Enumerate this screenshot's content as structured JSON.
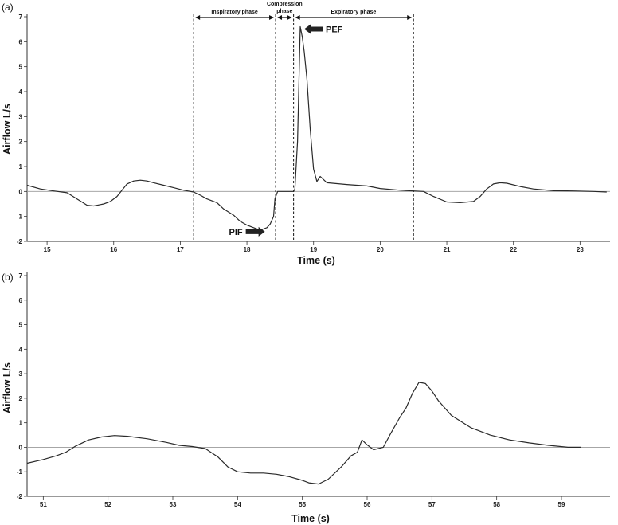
{
  "chart_data": [
    {
      "type": "line",
      "panel_label": "(a)",
      "xlabel": "Time (s)",
      "ylabel": "Airflow L/s",
      "xlim": [
        14.7,
        23.45
      ],
      "ylim": [
        -2,
        7
      ],
      "xticks": [
        15,
        16,
        17,
        18,
        19,
        20,
        21,
        22,
        23
      ],
      "yticks": [
        -2,
        -1,
        0,
        1,
        2,
        3,
        4,
        5,
        6,
        7
      ],
      "grid": false,
      "reference_line_y": 0,
      "series": [
        {
          "x": [
            14.7,
            14.9,
            15.1,
            15.3,
            15.45,
            15.6,
            15.7,
            15.85,
            15.95,
            16.05,
            16.2,
            16.3,
            16.4,
            16.5,
            16.6,
            16.75,
            16.9,
            17.05,
            17.2,
            17.3,
            17.4,
            17.55,
            17.65,
            17.8,
            17.9,
            18.0,
            18.1,
            18.2,
            18.3,
            18.35,
            18.4,
            18.42,
            18.46,
            18.55,
            18.65,
            18.7,
            18.72,
            18.76,
            18.8,
            18.83,
            18.86,
            18.9,
            18.95,
            19.0,
            19.05,
            19.1,
            19.2,
            19.5,
            19.8,
            20.0,
            20.3,
            20.5,
            20.65,
            20.8,
            21.0,
            21.2,
            21.4,
            21.5,
            21.6,
            21.7,
            21.8,
            21.9,
            22.1,
            22.3,
            22.6,
            22.9,
            23.2,
            23.4
          ],
          "y": [
            0.25,
            0.1,
            0.02,
            -0.05,
            -0.3,
            -0.55,
            -0.58,
            -0.5,
            -0.4,
            -0.2,
            0.3,
            0.42,
            0.45,
            0.42,
            0.35,
            0.25,
            0.15,
            0.05,
            -0.02,
            -0.15,
            -0.3,
            -0.45,
            -0.7,
            -0.95,
            -1.2,
            -1.35,
            -1.45,
            -1.55,
            -1.45,
            -1.3,
            -1.0,
            -0.3,
            0.0,
            0.0,
            0.0,
            0.0,
            0.1,
            2.0,
            6.6,
            6.2,
            5.6,
            4.5,
            2.5,
            0.9,
            0.4,
            0.6,
            0.35,
            0.28,
            0.22,
            0.12,
            0.05,
            0.02,
            0.0,
            -0.2,
            -0.42,
            -0.45,
            -0.4,
            -0.2,
            0.1,
            0.3,
            0.35,
            0.33,
            0.2,
            0.1,
            0.03,
            0.02,
            0.0,
            -0.02
          ]
        }
      ],
      "phases": [
        {
          "label": "Inspiratory phase",
          "start": 17.2,
          "end": 18.43
        },
        {
          "label": "Compression",
          "label_line2": "phase",
          "start": 18.43,
          "end": 18.7
        },
        {
          "label": "Expiratory phase",
          "start": 18.7,
          "end": 20.5
        }
      ],
      "annotations": [
        {
          "label": "PEF",
          "x": 18.8,
          "y": 6.6
        },
        {
          "label": "PIF",
          "x": 18.15,
          "y": -1.55
        }
      ]
    },
    {
      "type": "line",
      "panel_label": "(b)",
      "xlabel": "Time (s)",
      "ylabel": "Airflow L/s",
      "xlim": [
        50.75,
        59.75
      ],
      "ylim": [
        -2,
        7
      ],
      "xticks": [
        51,
        52,
        53,
        54,
        55,
        56,
        57,
        58,
        59
      ],
      "yticks": [
        -2,
        -1,
        0,
        1,
        2,
        3,
        4,
        5,
        6,
        7
      ],
      "grid": false,
      "reference_line_y": 0,
      "series": [
        {
          "x": [
            50.75,
            51.0,
            51.2,
            51.35,
            51.5,
            51.7,
            51.9,
            52.1,
            52.3,
            52.6,
            52.9,
            53.1,
            53.3,
            53.5,
            53.7,
            53.85,
            54.0,
            54.2,
            54.4,
            54.6,
            54.8,
            55.0,
            55.1,
            55.25,
            55.4,
            55.6,
            55.75,
            55.85,
            55.92,
            56.0,
            56.1,
            56.25,
            56.35,
            56.5,
            56.6,
            56.7,
            56.8,
            56.9,
            57.0,
            57.1,
            57.3,
            57.6,
            57.9,
            58.2,
            58.5,
            58.8,
            59.1,
            59.3
          ],
          "y": [
            -0.65,
            -0.5,
            -0.35,
            -0.2,
            0.05,
            0.3,
            0.42,
            0.48,
            0.45,
            0.35,
            0.2,
            0.08,
            0.03,
            -0.05,
            -0.4,
            -0.8,
            -1.0,
            -1.05,
            -1.05,
            -1.1,
            -1.2,
            -1.35,
            -1.45,
            -1.5,
            -1.3,
            -0.8,
            -0.35,
            -0.2,
            0.3,
            0.1,
            -0.1,
            0.0,
            0.5,
            1.2,
            1.6,
            2.2,
            2.65,
            2.6,
            2.3,
            1.9,
            1.3,
            0.8,
            0.5,
            0.3,
            0.18,
            0.08,
            0.0,
            0.0
          ]
        }
      ]
    }
  ]
}
